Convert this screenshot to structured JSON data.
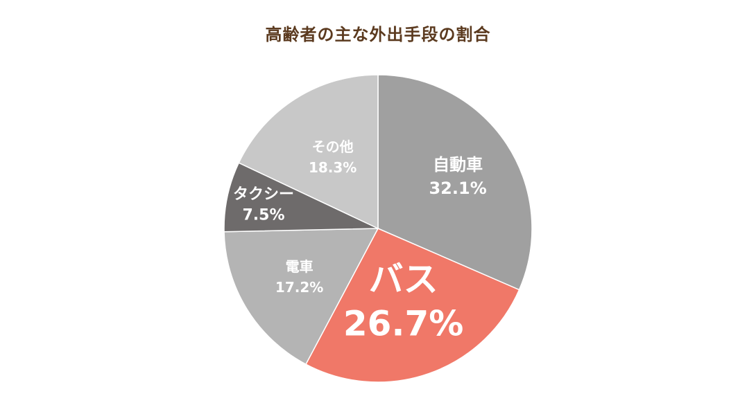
{
  "chart_data": {
    "type": "pie",
    "title": "高齢者の主な外出手段の割合",
    "slices": [
      {
        "label": "自動車",
        "value": 32.1,
        "value_label": "32.1%",
        "color": "#a0a0a0",
        "highlight": false
      },
      {
        "label": "バス",
        "value": 26.7,
        "value_label": "26.7%",
        "color": "#f07868",
        "highlight": true
      },
      {
        "label": "電車",
        "value": 17.2,
        "value_label": "17.2%",
        "color": "#b4b4b4",
        "highlight": false
      },
      {
        "label": "タクシー",
        "value": 7.5,
        "value_label": "7.5%",
        "color": "#6e6b6b",
        "highlight": false
      },
      {
        "label": "その他",
        "value": 18.3,
        "value_label": "18.3%",
        "color": "#c8c8c8",
        "highlight": false
      }
    ],
    "start_angle": "12 o'clock",
    "direction": "clockwise",
    "legend": "none"
  }
}
